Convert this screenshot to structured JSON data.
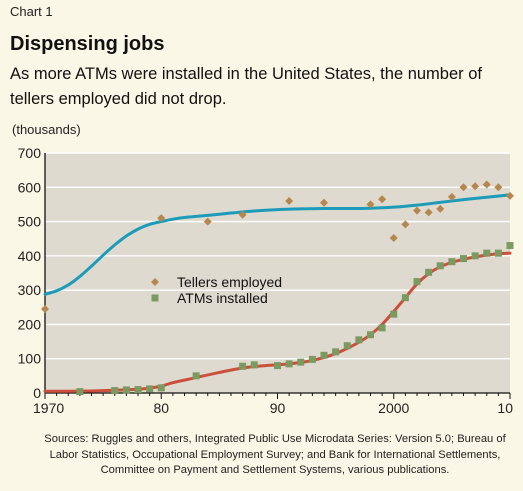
{
  "header": {
    "chart_label": "Chart 1",
    "title": "Dispensing jobs",
    "subtitle": "As more ATMs were installed in the United States, the number of tellers employed did not drop.",
    "unit": "(thousands)"
  },
  "source": "Sources: Ruggles and others, Integrated Public Use Microdata Series: Version 5.0; Bureau of Labor Statistics, Occupational Employment Survey; and Bank for International Settlements, Committee on Payment and Settlement Systems, various publications.",
  "colors": {
    "teller_marker": "#b5874f",
    "atm_marker": "#7a9a60",
    "teller_line": "#1d9bb8",
    "atm_line": "#cc4f3c",
    "plot_bg": "#dedad0",
    "grid": "#ffffff"
  },
  "chart_data": {
    "type": "scatter",
    "x_tick_values": [
      1970,
      1980,
      1990,
      2000,
      2010
    ],
    "x_tick_labels": [
      "1970",
      "80",
      "90",
      "2000",
      "10"
    ],
    "xlim": [
      1970,
      2010
    ],
    "ylim": [
      0,
      700
    ],
    "y_ticks": [
      0,
      100,
      200,
      300,
      400,
      500,
      600,
      700
    ],
    "grid": true,
    "legend_position": "center-left",
    "series": [
      {
        "name": "Tellers employed",
        "marker": "diamond",
        "color_key": "teller_marker",
        "x": [
          1970,
          1980,
          1984,
          1987,
          1991,
          1994,
          1998,
          1999,
          2000,
          2001,
          2002,
          2003,
          2004,
          2005,
          2006,
          2007,
          2008,
          2009,
          2010
        ],
        "y": [
          245,
          510,
          500,
          520,
          560,
          555,
          550,
          565,
          452,
          492,
          532,
          527,
          537,
          572,
          600,
          603,
          608,
          600,
          575
        ]
      },
      {
        "name": "ATMs installed",
        "marker": "square",
        "color_key": "atm_marker",
        "x": [
          1973,
          1976,
          1977,
          1978,
          1979,
          1980,
          1983,
          1987,
          1988,
          1990,
          1991,
          1992,
          1993,
          1994,
          1995,
          1996,
          1997,
          1998,
          1999,
          2000,
          2001,
          2002,
          2003,
          2004,
          2005,
          2006,
          2007,
          2008,
          2009,
          2010
        ],
        "y": [
          4,
          7,
          9,
          10,
          12,
          15,
          50,
          78,
          82,
          80,
          85,
          90,
          98,
          110,
          120,
          138,
          155,
          170,
          190,
          230,
          278,
          325,
          352,
          371,
          383,
          392,
          400,
          408,
          408,
          430
        ]
      },
      {
        "type": "line",
        "color_key": "teller_line",
        "x": [
          1970,
          1971,
          1972,
          1973,
          1974,
          1975,
          1976,
          1977,
          1978,
          1979,
          1980,
          1981,
          1982,
          1984,
          1986,
          1988,
          1990,
          1992,
          1994,
          1996,
          1998,
          2000,
          2002,
          2004,
          2006,
          2008,
          2010
        ],
        "y": [
          288,
          298,
          315,
          340,
          370,
          402,
          432,
          458,
          478,
          492,
          500,
          507,
          512,
          518,
          525,
          531,
          535,
          537,
          538,
          538,
          539,
          542,
          548,
          556,
          564,
          571,
          578
        ]
      },
      {
        "type": "line",
        "color_key": "atm_line",
        "x": [
          1970,
          1972,
          1974,
          1976,
          1978,
          1979,
          1980,
          1981,
          1983,
          1985,
          1987,
          1989,
          1991,
          1993,
          1995,
          1997,
          1998,
          1999,
          2000,
          2001,
          2002,
          2003,
          2004,
          2005,
          2006,
          2007,
          2008,
          2009,
          2010
        ],
        "y": [
          5,
          5,
          6,
          8,
          11,
          14,
          20,
          30,
          45,
          60,
          73,
          80,
          85,
          95,
          115,
          148,
          170,
          200,
          238,
          278,
          318,
          348,
          368,
          381,
          390,
          397,
          402,
          406,
          408
        ]
      }
    ]
  }
}
